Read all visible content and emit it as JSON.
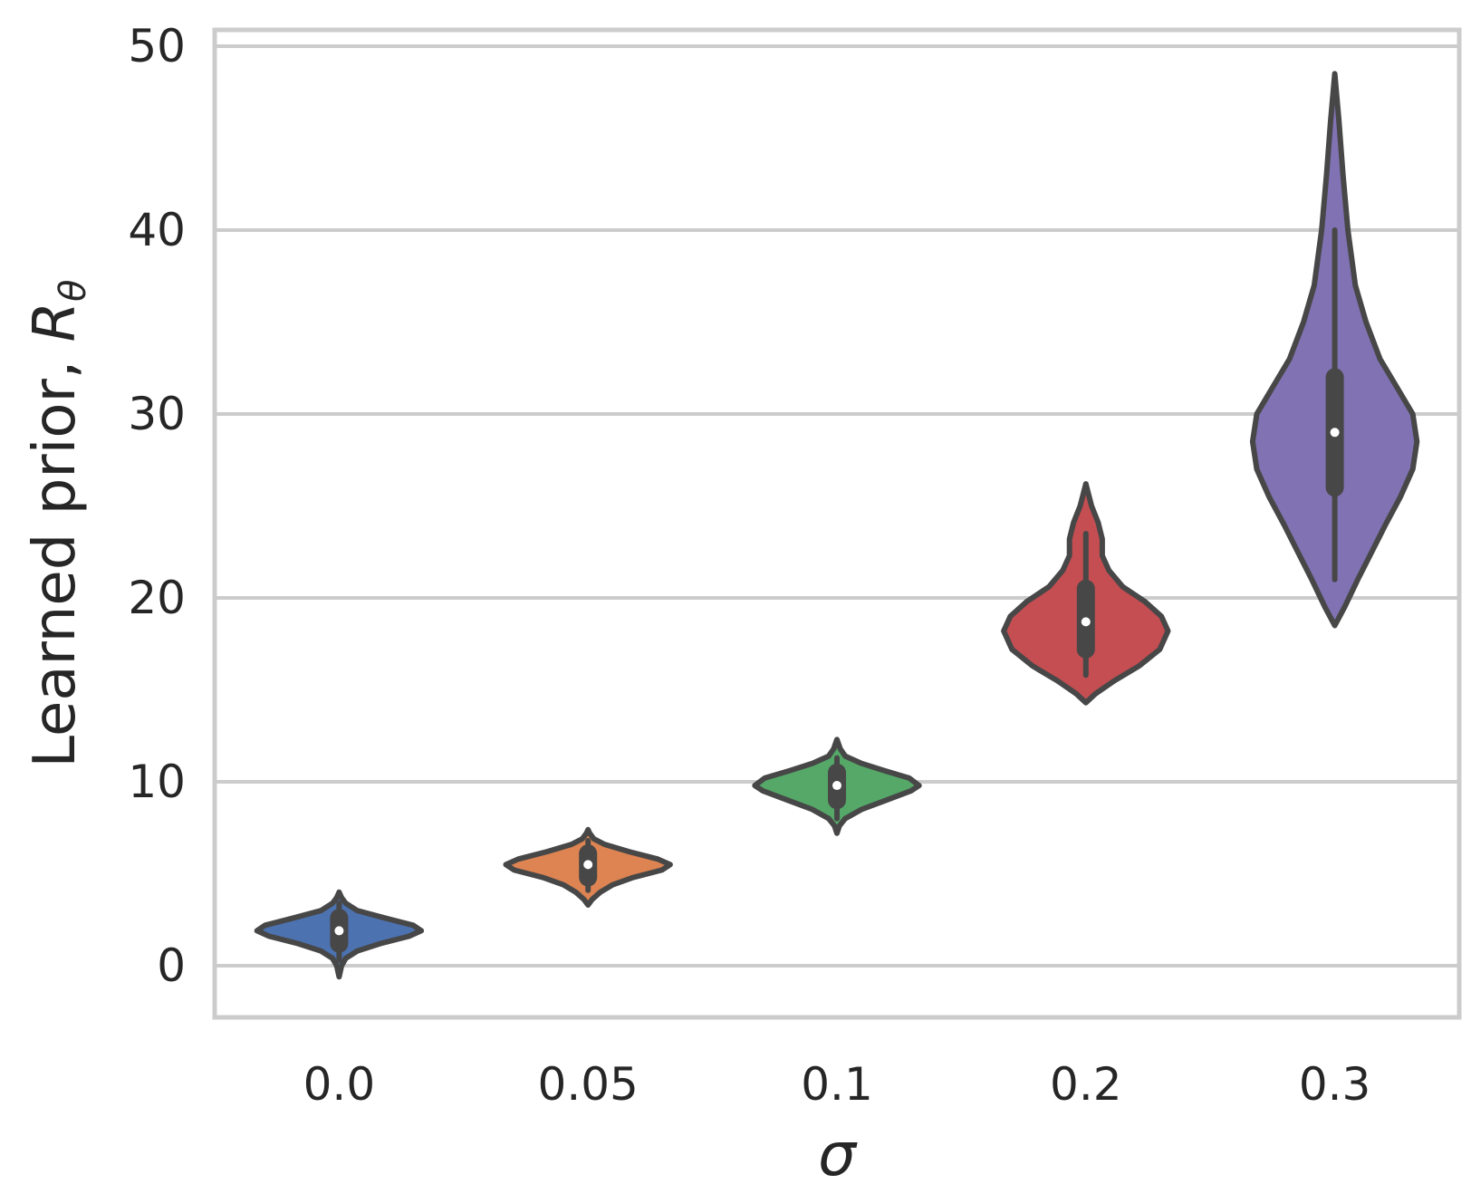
{
  "chart_data": {
    "type": "violin",
    "categories": [
      "0.0",
      "0.05",
      "0.1",
      "0.2",
      "0.3"
    ],
    "xlabel": "σ",
    "ylabel": "Learned prior, ",
    "ylabel_symbol": "R",
    "ylabel_subscript": "θ",
    "ylim": [
      -3,
      51
    ],
    "yticks": [
      "0",
      "10",
      "20",
      "30",
      "40",
      "50"
    ],
    "yticks_values": [
      0,
      10,
      20,
      30,
      40,
      50
    ],
    "grid": "horizontal",
    "colors": [
      "#4c72b0",
      "#dd8452",
      "#55a868",
      "#c44e52",
      "#8172b3"
    ],
    "edge_color": "#474747",
    "series": [
      {
        "category": "0.0",
        "median": 1.9,
        "q1": 1.2,
        "q3": 2.6,
        "whisker_low": 0.3,
        "whisker_high": 3.4,
        "min": -0.6,
        "max": 4.0,
        "profile": [
          [
            -0.6,
            0.0
          ],
          [
            0.0,
            0.03
          ],
          [
            0.4,
            0.08
          ],
          [
            0.8,
            0.22
          ],
          [
            1.2,
            0.5
          ],
          [
            1.6,
            0.85
          ],
          [
            1.9,
            1.0
          ],
          [
            2.2,
            0.9
          ],
          [
            2.6,
            0.55
          ],
          [
            3.0,
            0.22
          ],
          [
            3.4,
            0.08
          ],
          [
            3.7,
            0.03
          ],
          [
            4.0,
            0.0
          ]
        ]
      },
      {
        "category": "0.05",
        "median": 5.5,
        "q1": 4.8,
        "q3": 6.1,
        "whisker_low": 4.1,
        "whisker_high": 6.8,
        "min": 3.3,
        "max": 7.4,
        "profile": [
          [
            3.3,
            0.0
          ],
          [
            3.6,
            0.05
          ],
          [
            4.0,
            0.15
          ],
          [
            4.4,
            0.3
          ],
          [
            4.8,
            0.55
          ],
          [
            5.2,
            0.9
          ],
          [
            5.5,
            1.0
          ],
          [
            5.8,
            0.85
          ],
          [
            6.2,
            0.5
          ],
          [
            6.6,
            0.2
          ],
          [
            6.9,
            0.07
          ],
          [
            7.2,
            0.02
          ],
          [
            7.4,
            0.0
          ]
        ]
      },
      {
        "category": "0.1",
        "median": 9.8,
        "q1": 9.0,
        "q3": 10.5,
        "whisker_low": 8.0,
        "whisker_high": 11.3,
        "min": 7.2,
        "max": 12.3,
        "profile": [
          [
            7.2,
            0.0
          ],
          [
            7.6,
            0.03
          ],
          [
            8.0,
            0.1
          ],
          [
            8.5,
            0.3
          ],
          [
            9.0,
            0.6
          ],
          [
            9.5,
            0.9
          ],
          [
            9.8,
            1.0
          ],
          [
            10.2,
            0.88
          ],
          [
            10.6,
            0.58
          ],
          [
            11.0,
            0.3
          ],
          [
            11.4,
            0.1
          ],
          [
            11.8,
            0.04
          ],
          [
            12.3,
            0.0
          ]
        ]
      },
      {
        "category": "0.2",
        "median": 18.7,
        "q1": 17.2,
        "q3": 20.5,
        "whisker_low": 15.8,
        "whisker_high": 23.5,
        "min": 14.3,
        "max": 26.2,
        "profile": [
          [
            14.3,
            0.0
          ],
          [
            14.8,
            0.12
          ],
          [
            15.5,
            0.35
          ],
          [
            16.3,
            0.65
          ],
          [
            17.2,
            0.9
          ],
          [
            18.2,
            1.0
          ],
          [
            19.0,
            0.92
          ],
          [
            19.8,
            0.72
          ],
          [
            20.6,
            0.45
          ],
          [
            21.5,
            0.28
          ],
          [
            22.3,
            0.2
          ],
          [
            23.2,
            0.2
          ],
          [
            24.1,
            0.15
          ],
          [
            25.0,
            0.07
          ],
          [
            26.2,
            0.0
          ]
        ]
      },
      {
        "category": "0.3",
        "median": 29.0,
        "q1": 26.0,
        "q3": 32.0,
        "whisker_low": 21.0,
        "whisker_high": 40.0,
        "min": 18.5,
        "max": 48.5,
        "profile": [
          [
            18.5,
            0.0
          ],
          [
            19.5,
            0.12
          ],
          [
            21.0,
            0.28
          ],
          [
            22.5,
            0.45
          ],
          [
            24.0,
            0.62
          ],
          [
            25.5,
            0.8
          ],
          [
            27.0,
            0.95
          ],
          [
            28.5,
            1.0
          ],
          [
            30.0,
            0.95
          ],
          [
            31.5,
            0.75
          ],
          [
            33.0,
            0.55
          ],
          [
            35.0,
            0.38
          ],
          [
            37.0,
            0.25
          ],
          [
            40.0,
            0.16
          ],
          [
            43.0,
            0.1
          ],
          [
            46.0,
            0.05
          ],
          [
            48.5,
            0.0
          ]
        ]
      }
    ]
  }
}
